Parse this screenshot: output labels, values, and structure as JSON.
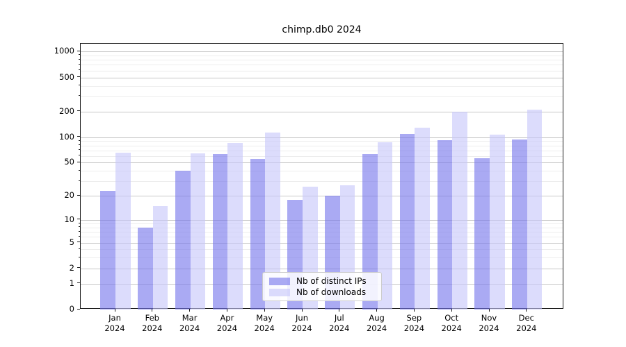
{
  "title": "chimp.db0 2024",
  "chart_data": {
    "type": "bar",
    "title": "chimp.db0 2024",
    "categories": [
      "Jan",
      "Feb",
      "Mar",
      "Apr",
      "May",
      "Jun",
      "Jul",
      "Aug",
      "Sep",
      "Oct",
      "Nov",
      "Dec"
    ],
    "category_year": "2024",
    "series": [
      {
        "key": "ips",
        "name": "Nb of distinct IPs",
        "color": "rgba(118,118,235,0.62)",
        "values": [
          23,
          8,
          40,
          63,
          55,
          18,
          20,
          63,
          110,
          93,
          57,
          94
        ]
      },
      {
        "key": "downloads",
        "name": "Nb of downloads",
        "color": "rgba(199,199,250,0.62)",
        "values": [
          66,
          15,
          64,
          85,
          113,
          26,
          27,
          87,
          130,
          200,
          108,
          209
        ]
      }
    ],
    "yscale": "log1p",
    "ylim": [
      0,
      1234
    ],
    "yticks": [
      0,
      1,
      2,
      5,
      10,
      20,
      50,
      100,
      200,
      500,
      1000
    ],
    "minor_yticks": [
      3,
      4,
      6,
      7,
      8,
      9,
      30,
      40,
      60,
      70,
      80,
      90,
      300,
      400,
      600,
      700,
      800,
      900
    ],
    "grid": true,
    "legend_position": "lower center"
  },
  "colors": {
    "grid_major": "#c6c6c6",
    "grid_minor": "#ededed",
    "spine": "#1a1a1a"
  }
}
